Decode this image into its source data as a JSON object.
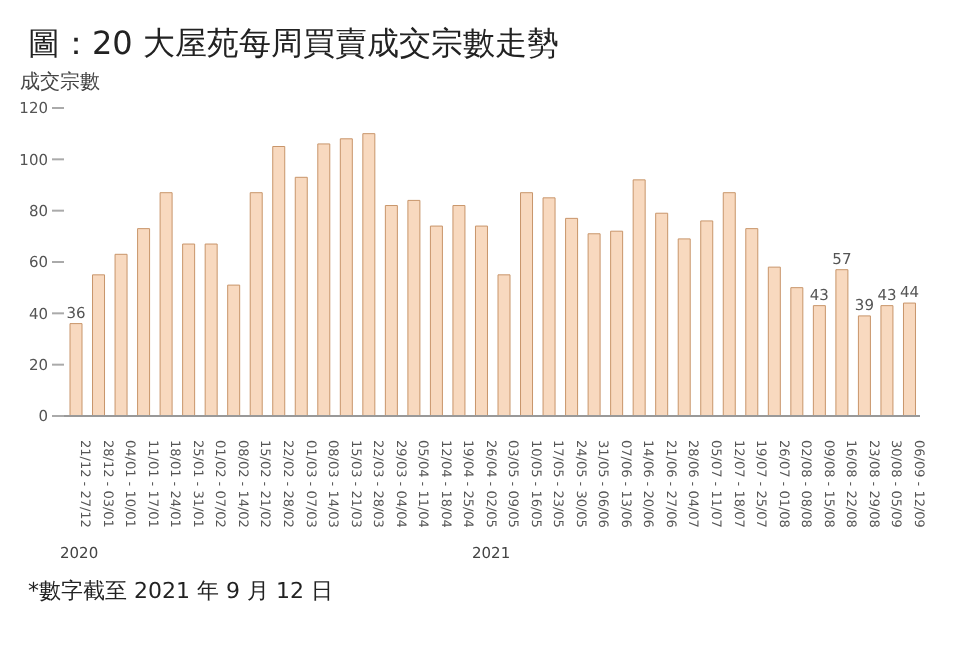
{
  "chart_data": {
    "type": "bar",
    "title": "圖：20 大屋苑每周買賣成交宗數走勢",
    "ylabel": "成交宗數",
    "categories": [
      "21/12 - 27/12",
      "28/12 - 03/01",
      "04/01 - 10/01",
      "11/01 - 17/01",
      "18/01 - 24/01",
      "25/01 - 31/01",
      "01/02 - 07/02",
      "08/02 - 14/02",
      "15/02 - 21/02",
      "22/02 - 28/02",
      "01/03 - 07/03",
      "08/03 - 14/03",
      "15/03 - 21/03",
      "22/03 - 28/03",
      "29/03 - 04/04",
      "05/04 - 11/04",
      "12/04 - 18/04",
      "19/04 - 25/04",
      "26/04 - 02/05",
      "03/05 - 09/05",
      "10/05 - 16/05",
      "17/05 - 23/05",
      "24/05 - 30/05",
      "31/05 - 06/06",
      "07/06 - 13/06",
      "14/06 - 20/06",
      "21/06 - 27/06",
      "28/06 - 04/07",
      "05/07 - 11/07",
      "12/07 - 18/07",
      "19/07 - 25/07",
      "26/07 - 01/08",
      "02/08 - 08/08",
      "09/08 - 15/08",
      "16/08 - 22/08",
      "23/08 - 29/08",
      "30/08 - 05/09",
      "06/09 - 12/09"
    ],
    "values": [
      36,
      55,
      63,
      73,
      87,
      67,
      67,
      51,
      87,
      105,
      93,
      106,
      108,
      110,
      82,
      84,
      74,
      82,
      74,
      55,
      87,
      85,
      77,
      71,
      72,
      92,
      79,
      69,
      76,
      87,
      73,
      58,
      50,
      43,
      57,
      39,
      43,
      44
    ],
    "value_labels": [
      "36",
      null,
      null,
      null,
      null,
      null,
      null,
      null,
      null,
      null,
      null,
      null,
      null,
      null,
      null,
      null,
      null,
      null,
      null,
      null,
      null,
      null,
      null,
      null,
      null,
      null,
      null,
      null,
      null,
      null,
      null,
      null,
      null,
      "43",
      "57",
      "39",
      "43",
      "44"
    ],
    "color": "#f8d9bf",
    "ylim": [
      0,
      120
    ],
    "yticks": [
      0,
      20,
      40,
      60,
      80,
      100,
      120
    ],
    "grid": false,
    "legend": false,
    "annotations": [
      "2020",
      "2021",
      "*數字截至 2021 年 9 月 12 日"
    ]
  }
}
